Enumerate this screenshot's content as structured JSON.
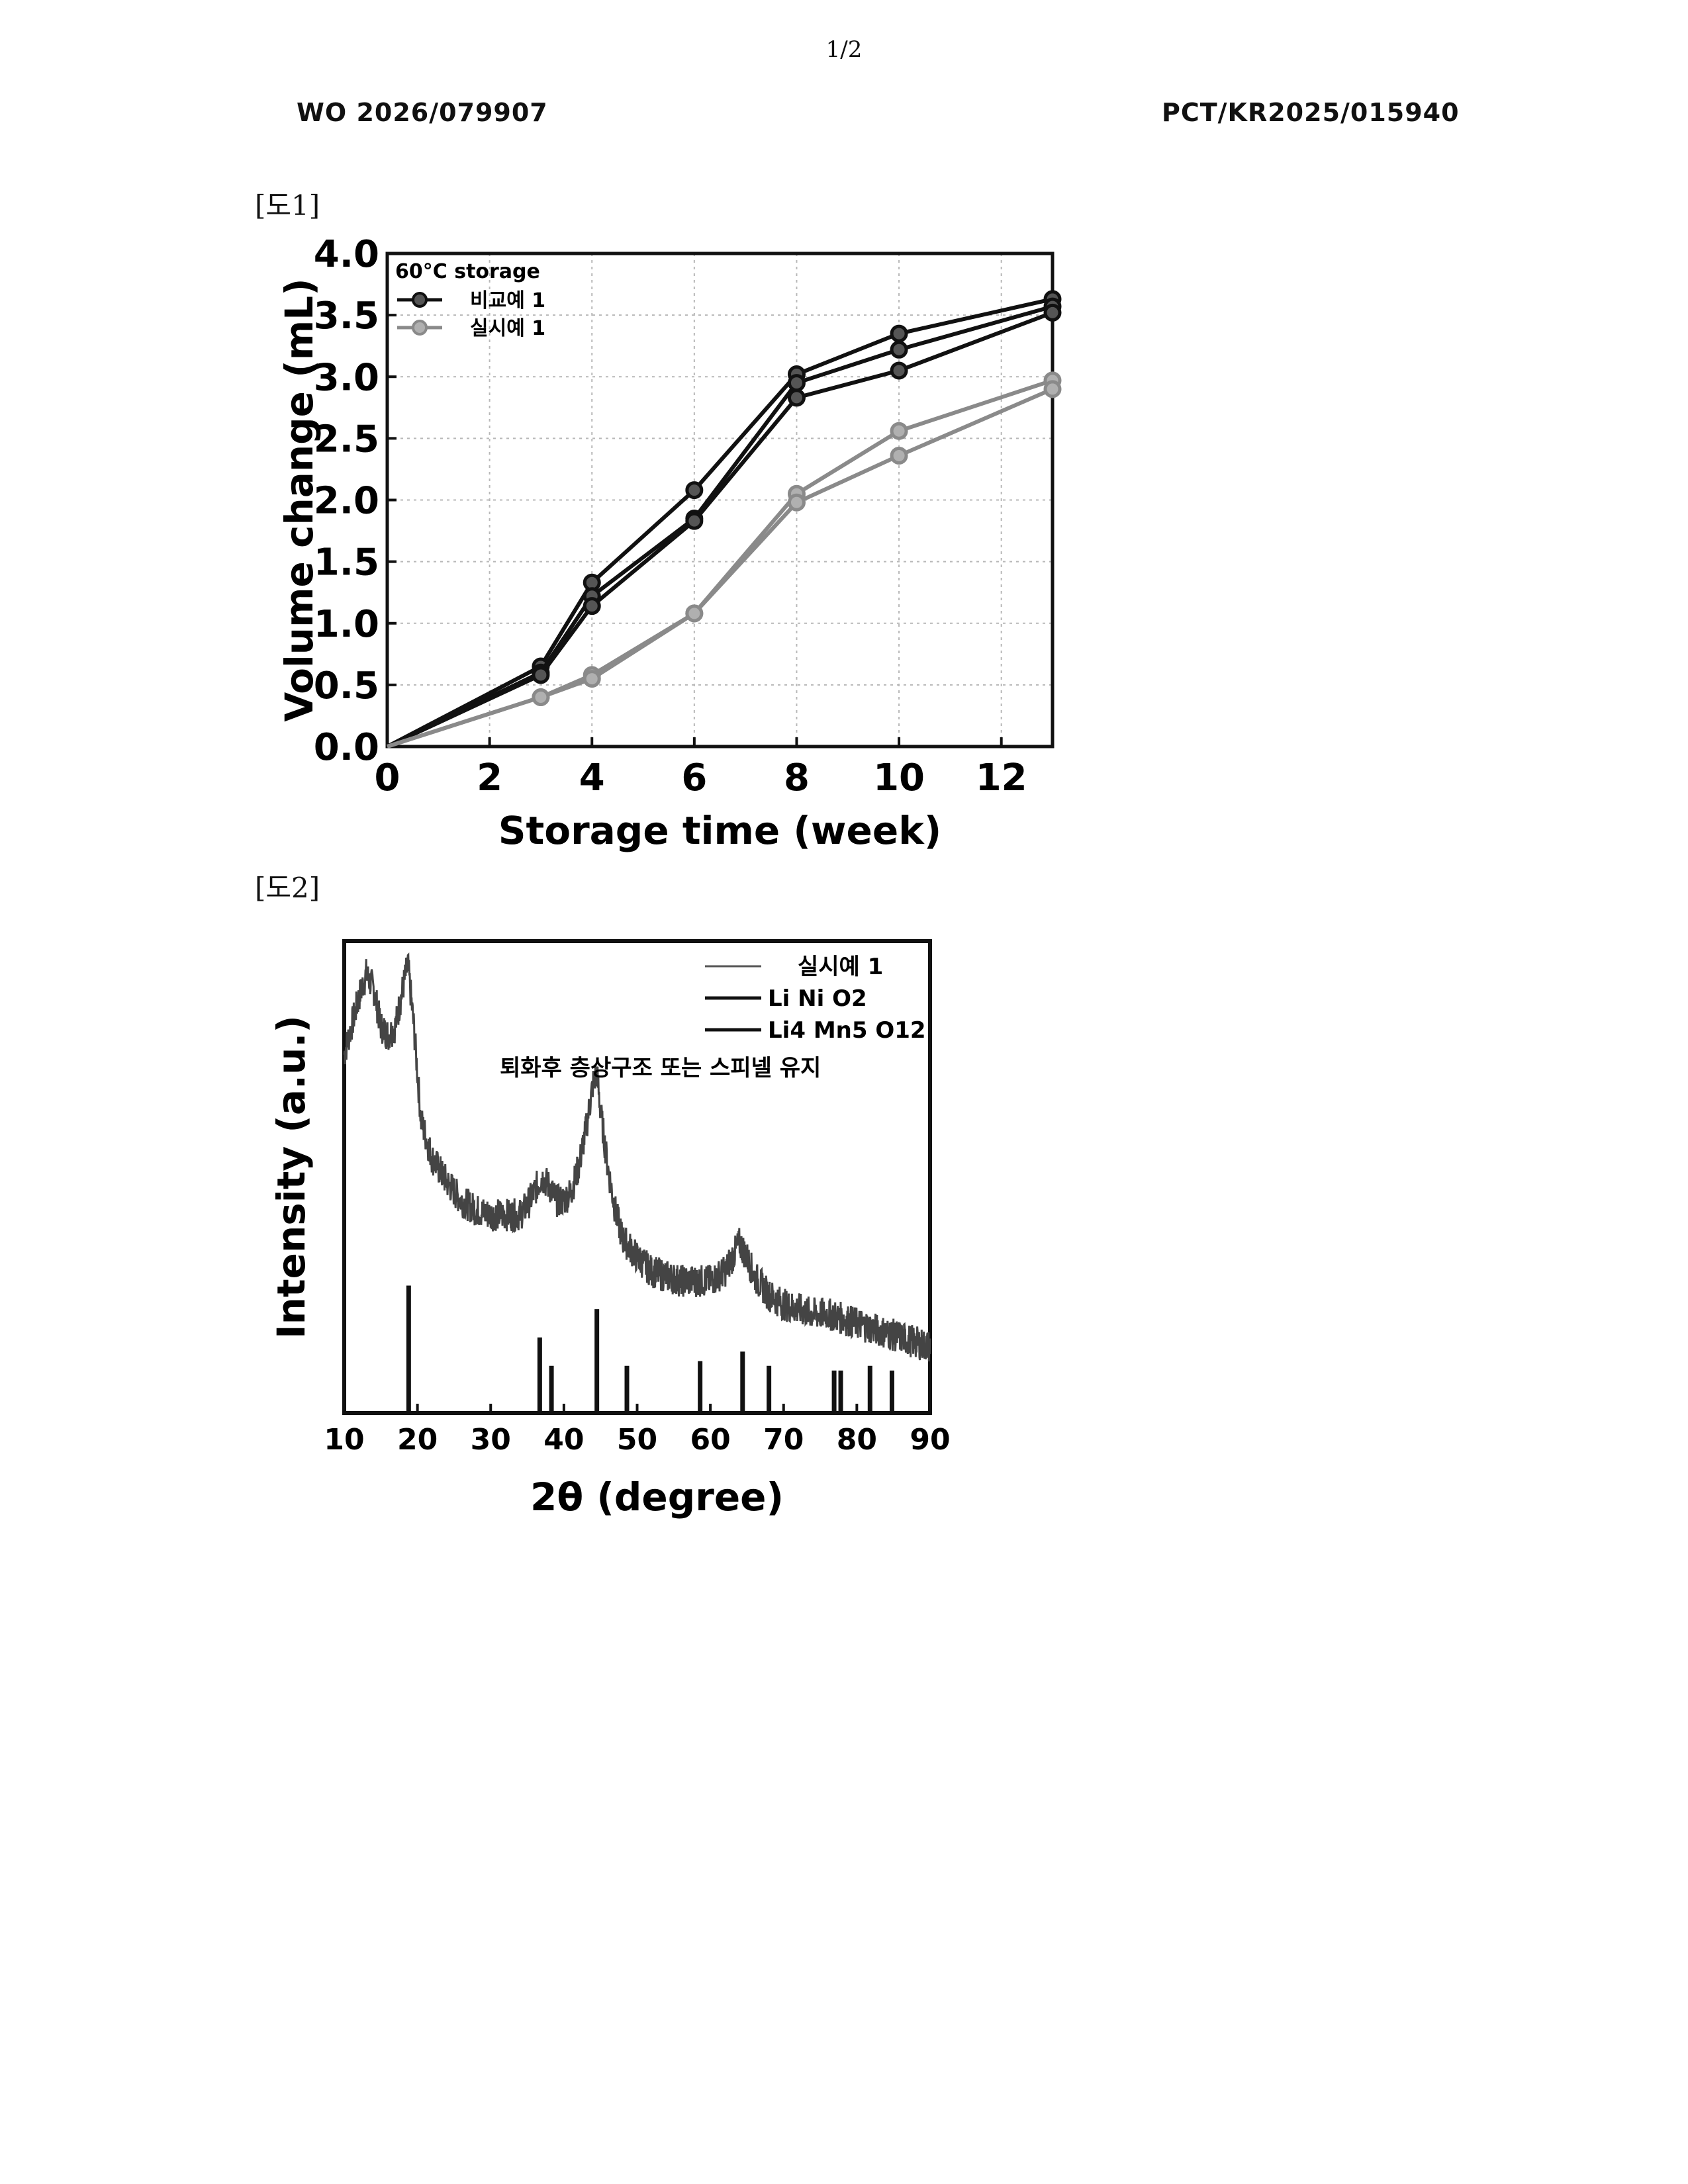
{
  "page": {
    "page_number": "1/2",
    "pub_number": "WO 2026/079907",
    "app_number": "PCT/KR2025/015940",
    "fig1_label": "[도1]",
    "fig2_label": "[도2]"
  },
  "chart_data": [
    {
      "type": "line",
      "title": "",
      "xlabel": "Storage time (week)",
      "ylabel": "Volume change (mL)",
      "xlim": [
        0,
        13
      ],
      "ylim": [
        0,
        4.0
      ],
      "xticks": [
        0,
        2,
        4,
        6,
        8,
        10,
        12
      ],
      "yticks": [
        0.0,
        0.5,
        1.0,
        1.5,
        2.0,
        2.5,
        3.0,
        3.5,
        4.0
      ],
      "grid": true,
      "legend_position": "top-left",
      "legend_title": "60°C storage",
      "legend": [
        {
          "label": "비교예 1",
          "color": "#111111"
        },
        {
          "label": "실시예 1",
          "color": "#8a8a8a"
        }
      ],
      "series": [
        {
          "name": "비교예 1",
          "color": "#111111",
          "x": [
            0,
            3,
            4,
            6,
            8,
            10,
            13
          ],
          "y": [
            0,
            0.65,
            1.33,
            2.08,
            3.02,
            3.35,
            3.63
          ]
        },
        {
          "name": "비교예 1",
          "color": "#111111",
          "x": [
            0,
            3,
            4,
            6,
            8,
            10,
            13
          ],
          "y": [
            0,
            0.6,
            1.22,
            1.85,
            2.95,
            3.22,
            3.57
          ]
        },
        {
          "name": "비교예 1",
          "color": "#111111",
          "x": [
            0,
            3,
            4,
            6,
            8,
            10,
            13
          ],
          "y": [
            0,
            0.58,
            1.14,
            1.83,
            2.83,
            3.05,
            3.52
          ]
        },
        {
          "name": "실시예 1",
          "color": "#8a8a8a",
          "x": [
            0,
            3,
            4,
            6,
            8,
            10,
            13
          ],
          "y": [
            0,
            0.4,
            0.58,
            1.08,
            2.05,
            2.56,
            2.97
          ]
        },
        {
          "name": "실시예 1",
          "color": "#8a8a8a",
          "x": [
            0,
            3,
            4,
            6,
            8,
            10,
            13
          ],
          "y": [
            0,
            0.4,
            0.55,
            1.08,
            1.98,
            2.36,
            2.9
          ]
        }
      ]
    },
    {
      "type": "line",
      "title": "",
      "xlabel": "2θ (degree)",
      "ylabel": "Intensity (a.u.)",
      "xlim": [
        10,
        90
      ],
      "ylim": [
        0,
        1
      ],
      "xticks": [
        10,
        20,
        30,
        40,
        50,
        60,
        70,
        80,
        90
      ],
      "grid": false,
      "legend_position": "top-right",
      "annotation": "퇴화후 층상구조 또는 스피넬 유지",
      "legend": [
        {
          "label": "실시예 1",
          "color": "#555555"
        },
        {
          "label": "Li Ni O2",
          "color": "#111111"
        },
        {
          "label": "Li4 Mn5 O12",
          "color": "#111111"
        }
      ],
      "series": [
        {
          "name": "실시예 1",
          "color": "#444444",
          "x": [
            10,
            11,
            12,
            13,
            14,
            15,
            16,
            17,
            18,
            18.7,
            19.5,
            20.5,
            22,
            24,
            26,
            28,
            30,
            32,
            34,
            35,
            36,
            37,
            38,
            39,
            40,
            41,
            42,
            43,
            44,
            44.5,
            45,
            46,
            47,
            48,
            50,
            52,
            54,
            56,
            58,
            60,
            62,
            63,
            64,
            65,
            66,
            68,
            70,
            72,
            74,
            76,
            78,
            80,
            82,
            84,
            86,
            88,
            90
          ],
          "y": [
            0.76,
            0.82,
            0.88,
            0.93,
            0.9,
            0.82,
            0.8,
            0.82,
            0.9,
            0.95,
            0.82,
            0.62,
            0.54,
            0.49,
            0.45,
            0.43,
            0.42,
            0.42,
            0.42,
            0.44,
            0.47,
            0.5,
            0.48,
            0.45,
            0.45,
            0.47,
            0.52,
            0.6,
            0.7,
            0.72,
            0.64,
            0.52,
            0.43,
            0.37,
            0.33,
            0.3,
            0.29,
            0.28,
            0.28,
            0.28,
            0.3,
            0.33,
            0.36,
            0.33,
            0.29,
            0.25,
            0.23,
            0.22,
            0.21,
            0.21,
            0.2,
            0.19,
            0.18,
            0.17,
            0.16,
            0.15,
            0.14
          ]
        }
      ],
      "reference_peaks": [
        {
          "x": 18.8,
          "h": 0.27
        },
        {
          "x": 36.7,
          "h": 0.16
        },
        {
          "x": 38.3,
          "h": 0.1
        },
        {
          "x": 44.5,
          "h": 0.22
        },
        {
          "x": 48.6,
          "h": 0.1
        },
        {
          "x": 58.6,
          "h": 0.11
        },
        {
          "x": 64.4,
          "h": 0.13
        },
        {
          "x": 68.0,
          "h": 0.1
        },
        {
          "x": 76.9,
          "h": 0.09
        },
        {
          "x": 77.8,
          "h": 0.09
        },
        {
          "x": 81.8,
          "h": 0.1
        },
        {
          "x": 84.8,
          "h": 0.09
        }
      ]
    }
  ]
}
